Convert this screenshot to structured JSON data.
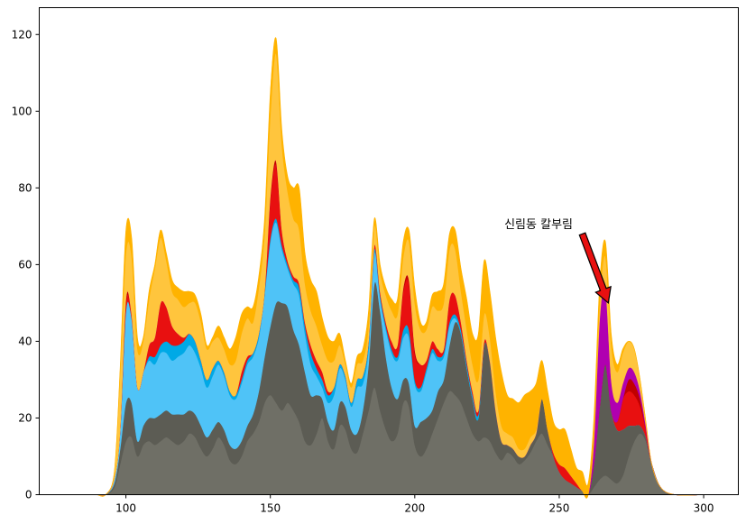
{
  "chart_data": {
    "type": "area",
    "stacked": true,
    "grid": false,
    "xlim": [
      70,
      312
    ],
    "ylim": [
      0,
      127
    ],
    "x_ticks": [
      100,
      150,
      200,
      250,
      300
    ],
    "y_ticks": [
      0,
      20,
      40,
      60,
      80,
      100,
      120
    ],
    "x": [
      90,
      93,
      96,
      98,
      100,
      102,
      104,
      106,
      108,
      110,
      112,
      114,
      116,
      118,
      120,
      122,
      124,
      126,
      128,
      130,
      132,
      134,
      136,
      138,
      140,
      142,
      144,
      146,
      148,
      150,
      152,
      154,
      156,
      158,
      160,
      162,
      164,
      166,
      168,
      170,
      172,
      174,
      176,
      178,
      180,
      182,
      184,
      186,
      188,
      190,
      192,
      194,
      196,
      198,
      200,
      202,
      204,
      206,
      208,
      210,
      212,
      214,
      216,
      218,
      220,
      222,
      224,
      226,
      228,
      230,
      232,
      234,
      236,
      238,
      240,
      242,
      244,
      246,
      248,
      250,
      252,
      254,
      256,
      258,
      260,
      262,
      264,
      266,
      268,
      270,
      272,
      274,
      276,
      278,
      280,
      282,
      285,
      290,
      300
    ],
    "series": [
      {
        "color": "#6f6f66",
        "values": [
          0,
          0,
          2,
          8,
          14,
          15,
          10,
          13,
          14,
          13,
          14,
          15,
          14,
          13,
          14,
          16,
          15,
          12,
          10,
          12,
          15,
          13,
          9,
          8,
          10,
          14,
          16,
          19,
          24,
          26,
          24,
          22,
          24,
          22,
          19,
          14,
          13,
          16,
          20,
          14,
          12,
          18,
          17,
          12,
          11,
          16,
          22,
          28,
          22,
          17,
          14,
          16,
          24,
          23,
          13,
          10,
          12,
          16,
          20,
          24,
          27,
          26,
          24,
          20,
          16,
          14,
          15,
          14,
          11,
          9,
          11,
          10,
          8,
          9,
          11,
          14,
          16,
          13,
          10,
          6,
          4,
          3,
          2,
          1,
          0,
          2,
          4,
          5,
          4,
          3,
          5,
          10,
          14,
          16,
          14,
          8,
          2,
          0,
          0
        ]
      },
      {
        "color": "#5c5c54",
        "values": [
          0,
          0,
          1,
          4,
          10,
          9,
          4,
          5,
          6,
          7,
          7,
          7,
          7,
          8,
          7,
          6,
          6,
          6,
          5,
          5,
          4,
          4,
          4,
          4,
          4,
          4,
          5,
          8,
          12,
          18,
          26,
          28,
          25,
          21,
          20,
          18,
          13,
          10,
          5,
          5,
          5,
          6,
          6,
          5,
          5,
          6,
          12,
          27,
          26,
          19,
          14,
          9,
          6,
          6,
          5,
          9,
          8,
          6,
          7,
          6,
          12,
          19,
          18,
          13,
          9,
          6,
          24,
          21,
          11,
          5,
          2,
          2,
          2,
          1,
          2,
          2,
          9,
          4,
          0,
          0,
          0,
          0,
          0,
          0,
          0,
          6,
          19,
          29,
          18,
          14,
          12,
          8,
          4,
          2,
          1,
          0,
          0,
          0,
          0
        ]
      },
      {
        "color": "#4fc3f7",
        "values": [
          0,
          0,
          1,
          5,
          24,
          22,
          14,
          14,
          15,
          14,
          16,
          15,
          14,
          15,
          16,
          17,
          16,
          15,
          13,
          14,
          15,
          14,
          13,
          13,
          15,
          16,
          15,
          14,
          16,
          22,
          21,
          14,
          10,
          12,
          13,
          10,
          8,
          5,
          3,
          5,
          9,
          9,
          7,
          6,
          12,
          7,
          4,
          8,
          3,
          7,
          9,
          10,
          11,
          12,
          11,
          8,
          12,
          15,
          8,
          6,
          5,
          1,
          0,
          0,
          0,
          0,
          0,
          0,
          0,
          0,
          0,
          0,
          0,
          0,
          0,
          0,
          0,
          0,
          0,
          0,
          0,
          0,
          0,
          0,
          0,
          0,
          0,
          0,
          0,
          0,
          0,
          0,
          0,
          0,
          0,
          0,
          0,
          0,
          0
        ]
      },
      {
        "color": "#00a9e6",
        "values": [
          0,
          0,
          0,
          0,
          0,
          0,
          0,
          0,
          1,
          2,
          2,
          3,
          4,
          3,
          3,
          3,
          3,
          2,
          2,
          2,
          1,
          1,
          1,
          1,
          1,
          1,
          1,
          1,
          1,
          1,
          1,
          1,
          1,
          1,
          2,
          2,
          3,
          2,
          2,
          2,
          2,
          1,
          1,
          1,
          2,
          2,
          2,
          1,
          1,
          1,
          1,
          1,
          2,
          2,
          1,
          1,
          1,
          1,
          1,
          1,
          1,
          1,
          1,
          1,
          1,
          1,
          0,
          0,
          0,
          0,
          0,
          0,
          0,
          0,
          0,
          0,
          0,
          0,
          0,
          0,
          0,
          0,
          0,
          0,
          0,
          0,
          0,
          0,
          0,
          0,
          0,
          0,
          0,
          0,
          0,
          0,
          0,
          0,
          0
        ]
      },
      {
        "color": "#e81010",
        "values": [
          0,
          0,
          0,
          0,
          2,
          1,
          0,
          0,
          3,
          5,
          11,
          9,
          5,
          3,
          1,
          0,
          0,
          0,
          0,
          0,
          0,
          0,
          0,
          0,
          2,
          1,
          0,
          0,
          0,
          10,
          14,
          4,
          1,
          1,
          1,
          1,
          2,
          2,
          2,
          1,
          0,
          0,
          0,
          0,
          0,
          0,
          0,
          1,
          1,
          1,
          2,
          3,
          10,
          12,
          7,
          6,
          2,
          2,
          2,
          1,
          6,
          5,
          2,
          1,
          1,
          1,
          1,
          0,
          0,
          0,
          0,
          0,
          0,
          0,
          0,
          0,
          0,
          0,
          1,
          2,
          3,
          2,
          1,
          0,
          0,
          0,
          0,
          0,
          0,
          2,
          8,
          9,
          8,
          5,
          2,
          0,
          0,
          0,
          0
        ]
      },
      {
        "color": "#c00000",
        "values": [
          0,
          0,
          0,
          0,
          1,
          0,
          0,
          0,
          0,
          0,
          0,
          0,
          0,
          0,
          0,
          0,
          0,
          0,
          0,
          0,
          0,
          0,
          0,
          0,
          0,
          0,
          0,
          0,
          0,
          1,
          1,
          0,
          0,
          0,
          0,
          0,
          0,
          0,
          0,
          0,
          0,
          0,
          0,
          0,
          0,
          0,
          0,
          0,
          0,
          0,
          0,
          0,
          1,
          1,
          1,
          0,
          0,
          0,
          0,
          0,
          0,
          0,
          0,
          0,
          0,
          0,
          0,
          0,
          0,
          0,
          0,
          0,
          0,
          0,
          0,
          0,
          0,
          0,
          0,
          0,
          0,
          0,
          0,
          0,
          0,
          0,
          0,
          0,
          0,
          0,
          0,
          3,
          3,
          2,
          0,
          0,
          0,
          0,
          0
        ]
      },
      {
        "color": "#b000b0",
        "values": [
          0,
          0,
          0,
          0,
          0,
          0,
          0,
          0,
          0,
          0,
          0,
          0,
          0,
          0,
          0,
          0,
          0,
          0,
          0,
          0,
          0,
          0,
          0,
          0,
          0,
          0,
          0,
          0,
          0,
          0,
          0,
          0,
          0,
          0,
          0,
          0,
          0,
          0,
          0,
          0,
          0,
          0,
          0,
          0,
          0,
          0,
          0,
          0,
          0,
          0,
          0,
          0,
          0,
          0,
          0,
          0,
          0,
          0,
          0,
          0,
          0,
          0,
          0,
          0,
          0,
          0,
          0,
          0,
          0,
          0,
          0,
          0,
          0,
          0,
          0,
          0,
          0,
          0,
          0,
          0,
          0,
          0,
          0,
          0,
          0,
          6,
          23,
          20,
          8,
          5,
          4,
          3,
          3,
          2,
          1,
          0,
          0,
          0,
          0
        ]
      },
      {
        "color": "#ffc53d",
        "values": [
          0,
          0,
          2,
          15,
          12,
          15,
          10,
          8,
          12,
          18,
          17,
          12,
          9,
          9,
          8,
          8,
          10,
          10,
          8,
          7,
          6,
          6,
          7,
          9,
          10,
          10,
          8,
          12,
          15,
          21,
          28,
          22,
          18,
          15,
          14,
          10,
          9,
          9,
          7,
          8,
          7,
          5,
          3,
          4,
          4,
          4,
          4,
          5,
          5,
          7,
          8,
          8,
          8,
          10,
          12,
          9,
          8,
          9,
          10,
          12,
          13,
          12,
          8,
          8,
          7,
          8,
          7,
          6,
          5,
          4,
          3,
          3,
          2,
          2,
          2,
          1,
          0,
          0,
          0,
          0,
          0,
          0,
          0,
          0,
          0,
          1,
          4,
          8,
          9,
          8,
          8,
          7,
          6,
          3,
          1,
          0,
          0,
          0,
          0
        ]
      },
      {
        "color": "#ffb300",
        "values": [
          0,
          0,
          0,
          1,
          6,
          5,
          3,
          1,
          2,
          1,
          2,
          2,
          3,
          3,
          4,
          3,
          2,
          2,
          1,
          1,
          3,
          3,
          4,
          6,
          5,
          3,
          4,
          3,
          4,
          6,
          4,
          4,
          4,
          8,
          11,
          8,
          8,
          9,
          7,
          6,
          5,
          3,
          1,
          1,
          2,
          3,
          4,
          2,
          2,
          2,
          3,
          4,
          4,
          3,
          4,
          2,
          2,
          3,
          5,
          5,
          4,
          5,
          6,
          8,
          8,
          12,
          14,
          12,
          14,
          14,
          10,
          10,
          12,
          14,
          12,
          12,
          10,
          10,
          8,
          9,
          10,
          7,
          4,
          5,
          3,
          5,
          5,
          4,
          3,
          2,
          1,
          0,
          0,
          0,
          0,
          0,
          0,
          0,
          0
        ]
      }
    ],
    "annotations": [
      {
        "text": "신림동 칼부림",
        "x": 231,
        "y": 69.5,
        "arrow_tail": [
          258,
          68
        ],
        "arrow_head": [
          267,
          50
        ]
      }
    ]
  }
}
